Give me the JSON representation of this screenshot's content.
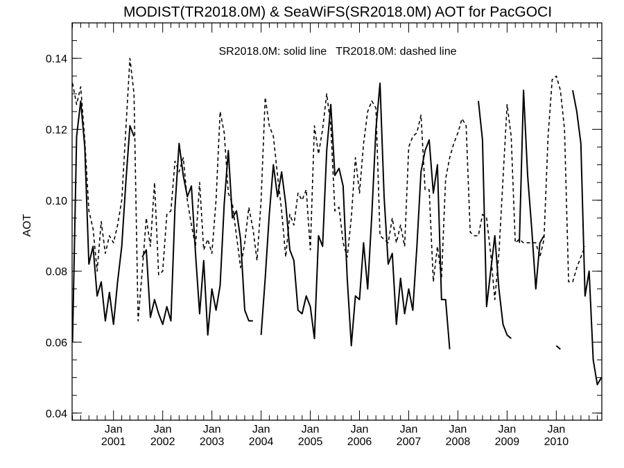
{
  "chart_data": {
    "type": "line",
    "title": "MODIST(TR2018.0M) & SeaWiFS(SR2018.0M)  AOT for PacGOCI",
    "annotation": "SR2018.0M: solid line   TR2018.0M: dashed line",
    "ylabel": "AOT",
    "xlabel": "",
    "ylim": [
      0.038,
      0.15
    ],
    "xlim": [
      "2000-03",
      "2010-12"
    ],
    "y_ticks": [
      "0.04",
      "0.06",
      "0.08",
      "0.10",
      "0.12",
      "0.14"
    ],
    "x_ticks": [
      {
        "month": "Jan",
        "year": "2001"
      },
      {
        "month": "Jan",
        "year": "2002"
      },
      {
        "month": "Jan",
        "year": "2003"
      },
      {
        "month": "Jan",
        "year": "2004"
      },
      {
        "month": "Jan",
        "year": "2005"
      },
      {
        "month": "Jan",
        "year": "2006"
      },
      {
        "month": "Jan",
        "year": "2007"
      },
      {
        "month": "Jan",
        "year": "2008"
      },
      {
        "month": "Jan",
        "year": "2009"
      },
      {
        "month": "Jan",
        "year": "2010"
      }
    ],
    "grid": false,
    "series": [
      {
        "name": "SR2018.0M",
        "style": "solid",
        "color": "#000000",
        "points": [
          [
            "2000-03",
            0.06
          ],
          [
            "2000-04",
            0.118
          ],
          [
            "2000-05",
            0.128
          ],
          [
            "2000-06",
            0.115
          ],
          [
            "2000-07",
            0.082
          ],
          [
            "2000-08",
            0.087
          ],
          [
            "2000-09",
            0.073
          ],
          [
            "2000-10",
            0.077
          ],
          [
            "2000-11",
            0.066
          ],
          [
            "2000-12",
            0.074
          ],
          [
            "2001-01",
            0.065
          ],
          [
            "2001-02",
            0.077
          ],
          [
            "2001-03",
            0.087
          ],
          [
            "2001-04",
            0.105
          ],
          [
            "2001-05",
            0.121
          ],
          [
            "2001-06",
            0.118
          ],
          [
            "2001-08",
            0.084
          ],
          [
            "2001-09",
            0.086
          ],
          [
            "2001-10",
            0.067
          ],
          [
            "2001-11",
            0.072
          ],
          [
            "2001-12",
            0.068
          ],
          [
            "2002-01",
            0.065
          ],
          [
            "2002-02",
            0.07
          ],
          [
            "2002-03",
            0.066
          ],
          [
            "2002-04",
            0.098
          ],
          [
            "2002-05",
            0.116
          ],
          [
            "2002-06",
            0.107
          ],
          [
            "2002-07",
            0.101
          ],
          [
            "2002-08",
            0.104
          ],
          [
            "2002-09",
            0.085
          ],
          [
            "2002-10",
            0.068
          ],
          [
            "2002-11",
            0.083
          ],
          [
            "2002-12",
            0.062
          ],
          [
            "2003-01",
            0.075
          ],
          [
            "2003-02",
            0.069
          ],
          [
            "2003-03",
            0.076
          ],
          [
            "2003-04",
            0.099
          ],
          [
            "2003-05",
            0.114
          ],
          [
            "2003-06",
            0.095
          ],
          [
            "2003-07",
            0.097
          ],
          [
            "2003-08",
            0.089
          ],
          [
            "2003-09",
            0.069
          ],
          [
            "2003-10",
            0.066
          ],
          [
            "2003-11",
            0.066
          ],
          [
            "2004-01",
            0.062
          ],
          [
            "2004-02",
            0.078
          ],
          [
            "2004-03",
            0.096
          ],
          [
            "2004-04",
            0.11
          ],
          [
            "2004-05",
            0.101
          ],
          [
            "2004-06",
            0.108
          ],
          [
            "2004-07",
            0.099
          ],
          [
            "2004-08",
            0.086
          ],
          [
            "2004-09",
            0.083
          ],
          [
            "2004-10",
            0.069
          ],
          [
            "2004-11",
            0.068
          ],
          [
            "2004-12",
            0.073
          ],
          [
            "2005-01",
            0.07
          ],
          [
            "2005-02",
            0.061
          ],
          [
            "2005-03",
            0.09
          ],
          [
            "2005-04",
            0.087
          ],
          [
            "2005-05",
            0.114
          ],
          [
            "2005-06",
            0.127
          ],
          [
            "2005-07",
            0.107
          ],
          [
            "2005-08",
            0.109
          ],
          [
            "2005-09",
            0.104
          ],
          [
            "2005-10",
            0.078
          ],
          [
            "2005-11",
            0.059
          ],
          [
            "2005-12",
            0.073
          ],
          [
            "2006-01",
            0.072
          ],
          [
            "2006-02",
            0.088
          ],
          [
            "2006-03",
            0.075
          ],
          [
            "2006-04",
            0.096
          ],
          [
            "2006-05",
            0.12
          ],
          [
            "2006-06",
            0.133
          ],
          [
            "2006-07",
            0.101
          ],
          [
            "2006-08",
            0.082
          ],
          [
            "2006-09",
            0.085
          ],
          [
            "2006-10",
            0.065
          ],
          [
            "2006-11",
            0.078
          ],
          [
            "2006-12",
            0.068
          ],
          [
            "2007-01",
            0.075
          ],
          [
            "2007-02",
            0.069
          ],
          [
            "2007-03",
            0.087
          ],
          [
            "2007-04",
            0.108
          ],
          [
            "2007-05",
            0.114
          ],
          [
            "2007-06",
            0.117
          ],
          [
            "2007-07",
            0.102
          ],
          [
            "2007-08",
            0.11
          ],
          [
            "2007-09",
            0.072
          ],
          [
            "2007-10",
            0.072
          ],
          [
            "2007-11",
            0.058
          ],
          [
            "2008-06",
            0.128
          ],
          [
            "2008-07",
            0.117
          ],
          [
            "2008-08",
            0.07
          ],
          [
            "2008-09",
            0.08
          ],
          [
            "2008-10",
            0.09
          ],
          [
            "2008-11",
            0.075
          ],
          [
            "2008-12",
            0.065
          ],
          [
            "2009-01",
            0.062
          ],
          [
            "2009-02",
            0.061
          ],
          [
            "2009-04",
            0.088
          ],
          [
            "2009-05",
            0.131
          ],
          [
            "2009-06",
            0.107
          ],
          [
            "2009-07",
            0.092
          ],
          [
            "2009-08",
            0.075
          ],
          [
            "2009-09",
            0.088
          ],
          [
            "2009-10",
            0.09
          ],
          [
            "2010-01",
            0.059
          ],
          [
            "2010-02",
            0.058
          ],
          [
            "2010-05",
            0.131
          ],
          [
            "2010-06",
            0.125
          ],
          [
            "2010-07",
            0.116
          ],
          [
            "2010-08",
            0.073
          ],
          [
            "2010-09",
            0.08
          ],
          [
            "2010-10",
            0.055
          ],
          [
            "2010-11",
            0.048
          ],
          [
            "2010-12",
            0.05
          ]
        ]
      },
      {
        "name": "TR2018.0M",
        "style": "dashed",
        "color": "#000000",
        "points": [
          [
            "2000-03",
            0.133
          ],
          [
            "2000-04",
            0.127
          ],
          [
            "2000-05",
            0.132
          ],
          [
            "2000-06",
            0.117
          ],
          [
            "2000-07",
            0.097
          ],
          [
            "2000-08",
            0.092
          ],
          [
            "2000-09",
            0.08
          ],
          [
            "2000-10",
            0.094
          ],
          [
            "2000-11",
            0.085
          ],
          [
            "2000-12",
            0.09
          ],
          [
            "2001-01",
            0.088
          ],
          [
            "2001-02",
            0.093
          ],
          [
            "2001-03",
            0.1
          ],
          [
            "2001-04",
            0.12
          ],
          [
            "2001-05",
            0.14
          ],
          [
            "2001-06",
            0.13
          ],
          [
            "2001-07",
            0.066
          ],
          [
            "2001-08",
            0.08
          ],
          [
            "2001-09",
            0.095
          ],
          [
            "2001-10",
            0.087
          ],
          [
            "2001-11",
            0.105
          ],
          [
            "2001-12",
            0.079
          ],
          [
            "2002-01",
            0.08
          ],
          [
            "2002-02",
            0.096
          ],
          [
            "2002-03",
            0.097
          ],
          [
            "2002-04",
            0.111
          ],
          [
            "2002-05",
            0.108
          ],
          [
            "2002-06",
            0.112
          ],
          [
            "2002-07",
            0.1
          ],
          [
            "2002-08",
            0.093
          ],
          [
            "2002-09",
            0.087
          ],
          [
            "2002-10",
            0.105
          ],
          [
            "2002-11",
            0.086
          ],
          [
            "2002-12",
            0.089
          ],
          [
            "2003-01",
            0.085
          ],
          [
            "2003-02",
            0.1
          ],
          [
            "2003-03",
            0.125
          ],
          [
            "2003-04",
            0.119
          ],
          [
            "2003-05",
            0.102
          ],
          [
            "2003-06",
            0.099
          ],
          [
            "2003-07",
            0.09
          ],
          [
            "2003-08",
            0.081
          ],
          [
            "2003-09",
            0.088
          ],
          [
            "2003-10",
            0.098
          ],
          [
            "2003-11",
            0.092
          ],
          [
            "2003-12",
            0.083
          ],
          [
            "2004-01",
            0.1
          ],
          [
            "2004-02",
            0.129
          ],
          [
            "2004-03",
            0.121
          ],
          [
            "2004-04",
            0.118
          ],
          [
            "2004-05",
            0.107
          ],
          [
            "2004-06",
            0.097
          ],
          [
            "2004-07",
            0.084
          ],
          [
            "2004-08",
            0.096
          ],
          [
            "2004-09",
            0.093
          ],
          [
            "2004-10",
            0.102
          ],
          [
            "2004-11",
            0.1
          ],
          [
            "2004-12",
            0.103
          ],
          [
            "2005-01",
            0.086
          ],
          [
            "2005-02",
            0.121
          ],
          [
            "2005-03",
            0.113
          ],
          [
            "2005-04",
            0.12
          ],
          [
            "2005-05",
            0.13
          ],
          [
            "2005-06",
            0.121
          ],
          [
            "2005-07",
            0.097
          ],
          [
            "2005-08",
            0.098
          ],
          [
            "2005-09",
            0.088
          ],
          [
            "2005-10",
            0.084
          ],
          [
            "2005-11",
            0.095
          ],
          [
            "2005-12",
            0.112
          ],
          [
            "2006-01",
            0.102
          ],
          [
            "2006-02",
            0.116
          ],
          [
            "2006-03",
            0.125
          ],
          [
            "2006-04",
            0.128
          ],
          [
            "2006-05",
            0.126
          ],
          [
            "2006-06",
            0.09
          ],
          [
            "2006-07",
            0.089
          ],
          [
            "2006-08",
            0.088
          ],
          [
            "2006-09",
            0.095
          ],
          [
            "2006-10",
            0.088
          ],
          [
            "2006-11",
            0.093
          ],
          [
            "2006-12",
            0.087
          ],
          [
            "2007-01",
            0.115
          ],
          [
            "2007-02",
            0.118
          ],
          [
            "2007-03",
            0.119
          ],
          [
            "2007-04",
            0.124
          ],
          [
            "2007-05",
            0.103
          ],
          [
            "2007-06",
            0.103
          ],
          [
            "2007-07",
            0.077
          ],
          [
            "2007-08",
            0.087
          ],
          [
            "2007-09",
            0.078
          ],
          [
            "2007-10",
            0.106
          ],
          [
            "2007-11",
            0.112
          ],
          [
            "2007-12",
            0.116
          ],
          [
            "2008-01",
            0.119
          ],
          [
            "2008-02",
            0.123
          ],
          [
            "2008-03",
            0.121
          ],
          [
            "2008-04",
            0.091
          ],
          [
            "2008-05",
            0.09
          ],
          [
            "2008-06",
            0.09
          ],
          [
            "2008-07",
            0.096
          ],
          [
            "2008-08",
            0.095
          ],
          [
            "2008-09",
            0.085
          ],
          [
            "2008-10",
            0.072
          ],
          [
            "2008-11",
            0.085
          ],
          [
            "2008-12",
            0.106
          ],
          [
            "2009-01",
            0.127
          ],
          [
            "2009-02",
            0.118
          ],
          [
            "2009-03",
            0.088
          ],
          [
            "2009-04",
            0.089
          ],
          [
            "2009-05",
            0.088
          ],
          [
            "2009-06",
            0.088
          ],
          [
            "2009-07",
            0.088
          ],
          [
            "2009-08",
            0.088
          ],
          [
            "2009-09",
            0.084
          ],
          [
            "2009-10",
            0.089
          ],
          [
            "2009-11",
            0.118
          ],
          [
            "2009-12",
            0.134
          ],
          [
            "2010-01",
            0.135
          ],
          [
            "2010-02",
            0.131
          ],
          [
            "2010-03",
            0.12
          ],
          [
            "2010-04",
            0.077
          ],
          [
            "2010-05",
            0.077
          ],
          [
            "2010-06",
            0.081
          ],
          [
            "2010-07",
            0.084
          ],
          [
            "2010-08",
            0.087
          ]
        ]
      }
    ]
  }
}
